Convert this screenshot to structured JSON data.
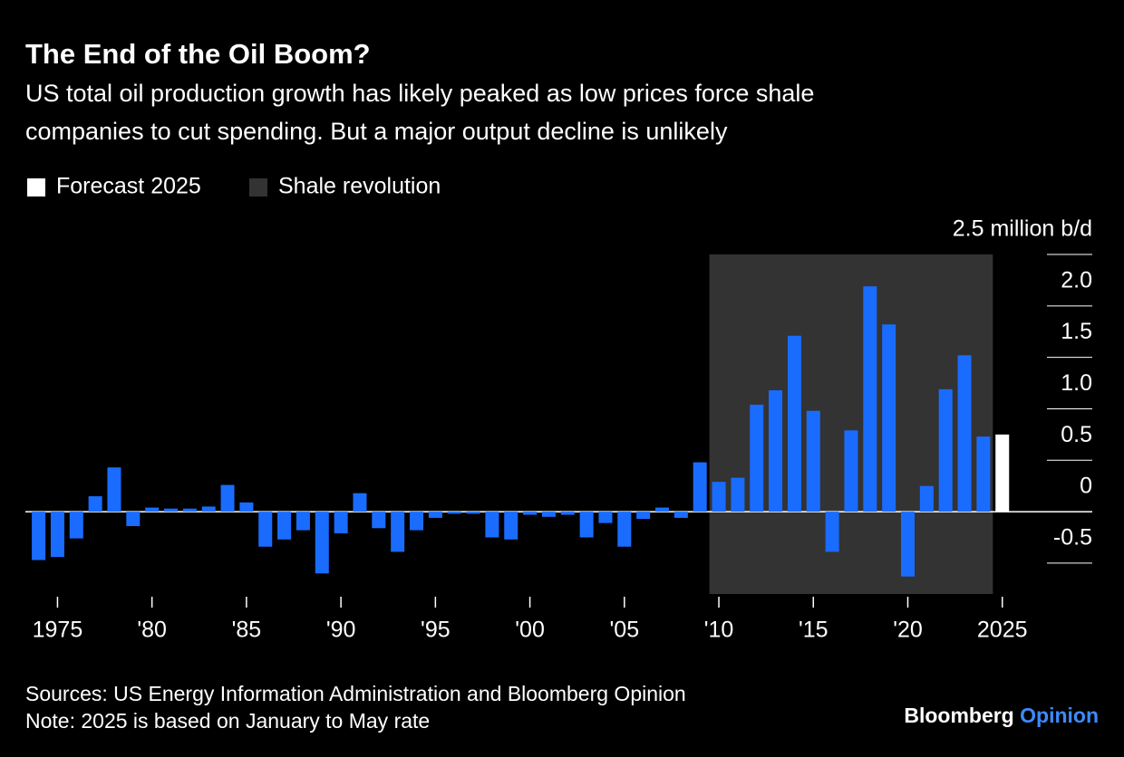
{
  "chart_data": {
    "type": "bar",
    "title": "The End of the Oil Boom?",
    "subtitle": [
      "US total oil production growth has likely peaked as low prices force shale",
      "companies to cut spending. But a major output decline is unlikely"
    ],
    "x": [
      1974,
      1975,
      1976,
      1977,
      1978,
      1979,
      1980,
      1981,
      1982,
      1983,
      1984,
      1985,
      1986,
      1987,
      1988,
      1989,
      1990,
      1991,
      1992,
      1993,
      1994,
      1995,
      1996,
      1997,
      1998,
      1999,
      2000,
      2001,
      2002,
      2003,
      2004,
      2005,
      2006,
      2007,
      2008,
      2009,
      2010,
      2011,
      2012,
      2013,
      2014,
      2015,
      2016,
      2017,
      2018,
      2019,
      2020,
      2021,
      2022,
      2023,
      2024,
      2025
    ],
    "series": [
      {
        "color": "#1a6cff",
        "values": [
          -0.47,
          -0.44,
          -0.26,
          0.15,
          0.43,
          -0.14,
          0.04,
          0.03,
          0.03,
          0.05,
          0.26,
          0.09,
          -0.34,
          -0.27,
          -0.18,
          -0.6,
          -0.21,
          0.18,
          -0.16,
          -0.39,
          -0.18,
          -0.06,
          -0.02,
          -0.02,
          -0.25,
          -0.27,
          -0.03,
          -0.05,
          -0.03,
          -0.25,
          -0.11,
          -0.34,
          -0.07,
          0.04,
          -0.06,
          0.48,
          0.29,
          0.33,
          1.04,
          1.18,
          1.71,
          0.98,
          -0.39,
          0.79,
          2.19,
          1.82,
          -0.63,
          0.25,
          1.19,
          1.52,
          0.73,
          0.75
        ]
      }
    ],
    "highlight": {
      "name": "Forecast 2025",
      "color": "#ffffff",
      "index": 51
    },
    "shade": {
      "name": "Shale revolution",
      "color": "#333333",
      "x": [
        2009.5,
        2024.5
      ]
    },
    "xlim": [
      1973.3,
      2026.5
    ],
    "xticks": [
      1975,
      {
        "value": 1980,
        "label": "'80"
      },
      {
        "value": 1985,
        "label": "'85"
      },
      {
        "value": 1990,
        "label": "'90"
      },
      {
        "value": 1995,
        "label": "'95"
      },
      {
        "value": 2000,
        "label": "'00"
      },
      {
        "value": 2005,
        "label": "'05"
      },
      {
        "value": 2010,
        "label": "'10"
      },
      {
        "value": 2015,
        "label": "'15"
      },
      {
        "value": 2020,
        "label": "'20"
      },
      2025
    ],
    "ylim": [
      -0.8,
      2.5
    ],
    "yticks": [
      -0.5,
      0,
      0.5,
      {
        "value": 1,
        "label": "1.0"
      },
      1.5,
      {
        "value": 2,
        "label": "2.0"
      },
      {
        "value": 2.5,
        "label": "2.5 million b/d"
      }
    ],
    "sources": "Sources: US Energy Information Administration and Bloomberg Opinion",
    "note": "Note: 2025 is based on January to May rate",
    "brand": [
      "Bloomberg",
      "Opinion"
    ]
  }
}
